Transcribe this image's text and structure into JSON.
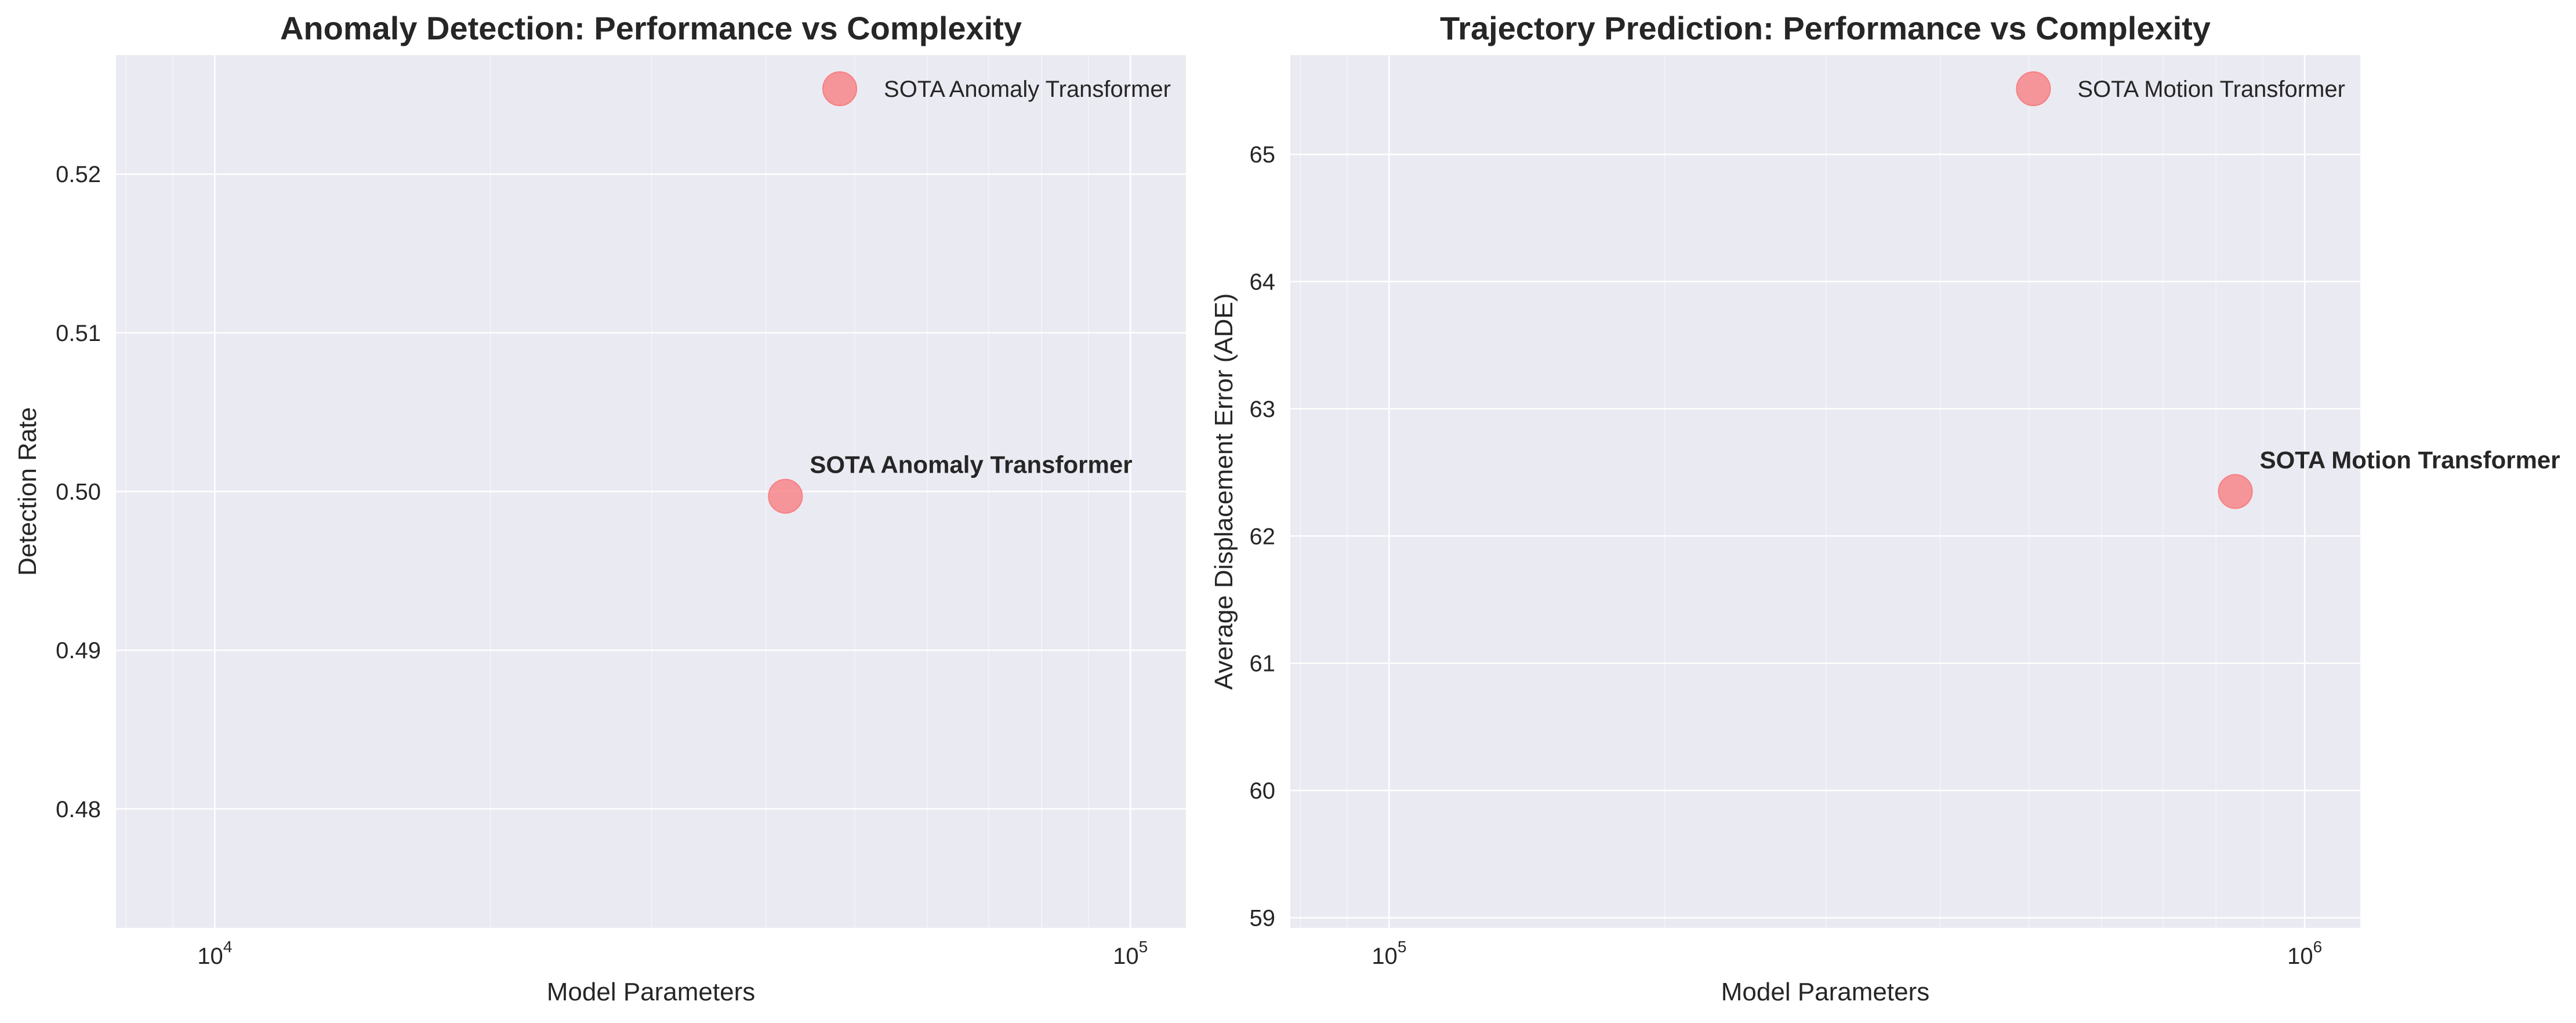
{
  "chart_data": [
    {
      "type": "scatter",
      "title": "Anomaly Detection: Performance vs Complexity",
      "xlabel": "Model Parameters",
      "ylabel": "Detection Rate",
      "xscale": "log",
      "xlim": [
        7800,
        115000
      ],
      "ylim": [
        0.4725,
        0.5275
      ],
      "xticks": [
        {
          "value": 10000,
          "base": "10",
          "exp": "4"
        },
        {
          "value": 100000,
          "base": "10",
          "exp": "5"
        }
      ],
      "yticks": [
        {
          "value": 0.48,
          "label": "0.48"
        },
        {
          "value": 0.49,
          "label": "0.49"
        },
        {
          "value": 0.5,
          "label": "0.50"
        },
        {
          "value": 0.51,
          "label": "0.51"
        },
        {
          "value": 0.52,
          "label": "0.52"
        }
      ],
      "grid": true,
      "legend_position": "top-right",
      "series": [
        {
          "name": "SOTA Anomaly Transformer",
          "color": "#f77f82",
          "points": [
            {
              "x": 42000,
              "y": 0.4997,
              "label": "SOTA Anomaly Transformer"
            }
          ]
        }
      ]
    },
    {
      "type": "scatter",
      "title": "Trajectory Prediction: Performance vs Complexity",
      "xlabel": "Model Parameters",
      "ylabel": "Average Displacement Error (ADE)",
      "xscale": "log",
      "xlim": [
        78000,
        1150000
      ],
      "ylim": [
        58.92,
        65.78
      ],
      "xticks": [
        {
          "value": 100000,
          "base": "10",
          "exp": "5"
        },
        {
          "value": 1000000,
          "base": "10",
          "exp": "6"
        }
      ],
      "yticks": [
        {
          "value": 59,
          "label": "59"
        },
        {
          "value": 60,
          "label": "60"
        },
        {
          "value": 61,
          "label": "61"
        },
        {
          "value": 62,
          "label": "62"
        },
        {
          "value": 63,
          "label": "63"
        },
        {
          "value": 64,
          "label": "64"
        },
        {
          "value": 65,
          "label": "65"
        }
      ],
      "grid": true,
      "legend_position": "top-right",
      "series": [
        {
          "name": "SOTA Motion Transformer",
          "color": "#f77f82",
          "points": [
            {
              "x": 840000,
              "y": 62.35,
              "label": "SOTA Motion Transformer"
            }
          ]
        }
      ]
    }
  ]
}
